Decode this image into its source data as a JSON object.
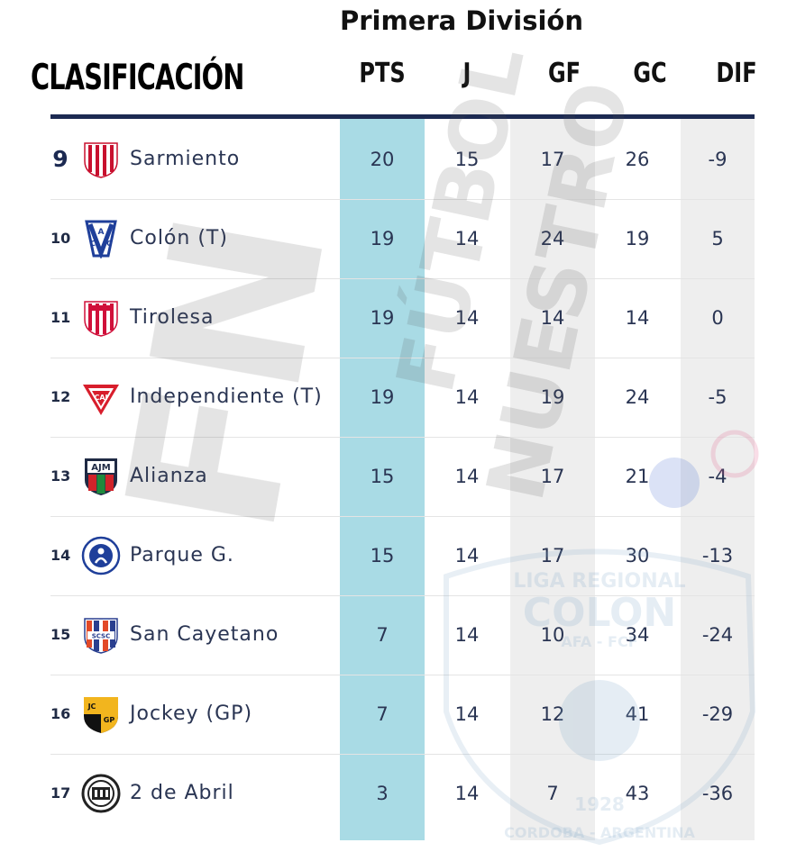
{
  "competition_title": "Primera División",
  "section_title": "CLASIFICACIÓN",
  "columns": [
    "PTS",
    "J",
    "GF",
    "GC",
    "DIF"
  ],
  "rows": [
    {
      "pos": "9",
      "team": "Sarmiento",
      "pts": "20",
      "j": "15",
      "gf": "17",
      "gc": "26",
      "dif": "-9"
    },
    {
      "pos": "10",
      "team": "Colón (T)",
      "pts": "19",
      "j": "14",
      "gf": "24",
      "gc": "19",
      "dif": "5"
    },
    {
      "pos": "11",
      "team": "Tirolesa",
      "pts": "19",
      "j": "14",
      "gf": "14",
      "gc": "14",
      "dif": "0"
    },
    {
      "pos": "12",
      "team": "Independiente (T)",
      "pts": "19",
      "j": "14",
      "gf": "19",
      "gc": "24",
      "dif": "-5"
    },
    {
      "pos": "13",
      "team": "Alianza",
      "pts": "15",
      "j": "14",
      "gf": "17",
      "gc": "21",
      "dif": "-4"
    },
    {
      "pos": "14",
      "team": "Parque G.",
      "pts": "15",
      "j": "14",
      "gf": "17",
      "gc": "30",
      "dif": "-13"
    },
    {
      "pos": "15",
      "team": "San Cayetano",
      "pts": "7",
      "j": "14",
      "gf": "10",
      "gc": "34",
      "dif": "-24"
    },
    {
      "pos": "16",
      "team": "Jockey (GP)",
      "pts": "7",
      "j": "14",
      "gf": "12",
      "gc": "41",
      "dif": "-29"
    },
    {
      "pos": "17",
      "team": "2 de Abril",
      "pts": "3",
      "j": "14",
      "gf": "7",
      "gc": "43",
      "dif": "-36"
    }
  ],
  "crest_letters": {
    "colon": "ACC",
    "independiente": "CAI",
    "alianza": "AJM",
    "san_cayetano": "SCSC",
    "jockey": [
      "JC",
      "GP"
    ]
  },
  "watermark": {
    "logo_text": "FN",
    "line1": "FÚTBOL",
    "line2": "NUESTRO",
    "seal_top": "LIGA REGIONAL",
    "seal_name": "COLON",
    "seal_sub": "AFA - FCF",
    "seal_year": "1928",
    "seal_bottom": "CORDOBA - ARGENTINA"
  },
  "colors": {
    "pts_column": "#a9dbe5",
    "alt_column": "#eeeeee",
    "header_rule": "#1c2a52",
    "text": "#2a3553"
  }
}
